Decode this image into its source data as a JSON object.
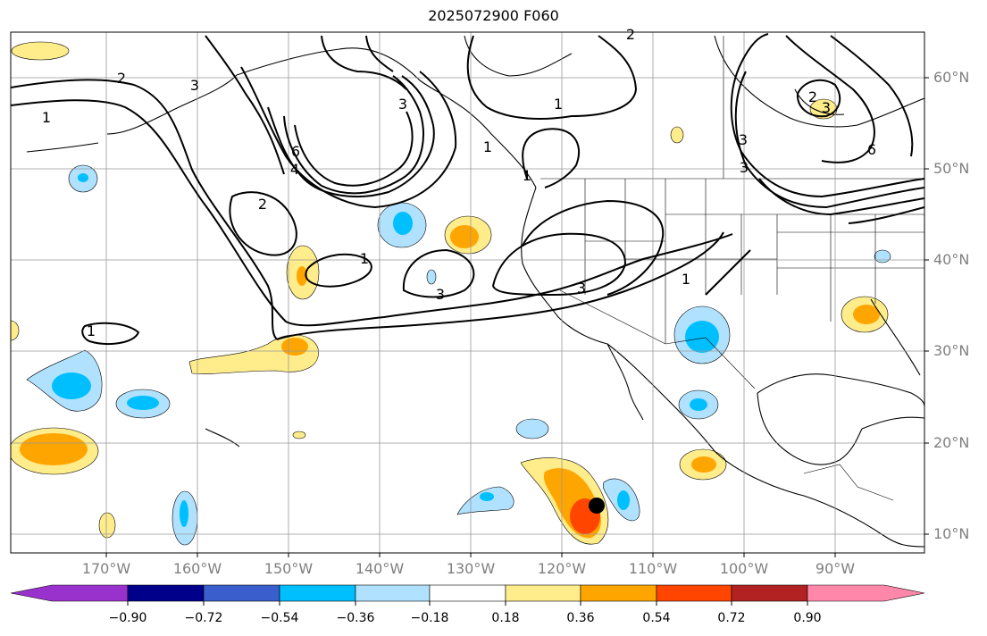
{
  "title": "2025072900 F060",
  "latitude_labels": [
    "60°N",
    "50°N",
    "40°N",
    "30°N",
    "20°N",
    "10°N"
  ],
  "longitude_labels": [
    "170°W",
    "160°W",
    "150°W",
    "140°W",
    "130°W",
    "120°W",
    "110°W",
    "100°W",
    "90°W"
  ],
  "colorbar": {
    "tick_labels": [
      "−0.90",
      "−0.72",
      "−0.54",
      "−0.36",
      "−0.18",
      "0.18",
      "0.36",
      "0.54",
      "0.72",
      "0.90"
    ],
    "colors": [
      "#9932cc",
      "#00008b",
      "#3a5fcd",
      "#00bfff",
      "#b0e2ff",
      "#ffffff",
      "#ffec8b",
      "#ffa500",
      "#ff4500",
      "#b22222",
      "#ff88aa"
    ]
  },
  "contour_labels": [
    "1",
    "2",
    "3",
    "1",
    "2",
    "3",
    "6",
    "4",
    "1",
    "3",
    "1",
    "3",
    "1",
    "2",
    "3",
    "6",
    "3",
    "2",
    "3",
    "1",
    "1"
  ],
  "colors": {
    "contour": "#000000",
    "grid": "#999999",
    "marker": "#000000"
  }
}
